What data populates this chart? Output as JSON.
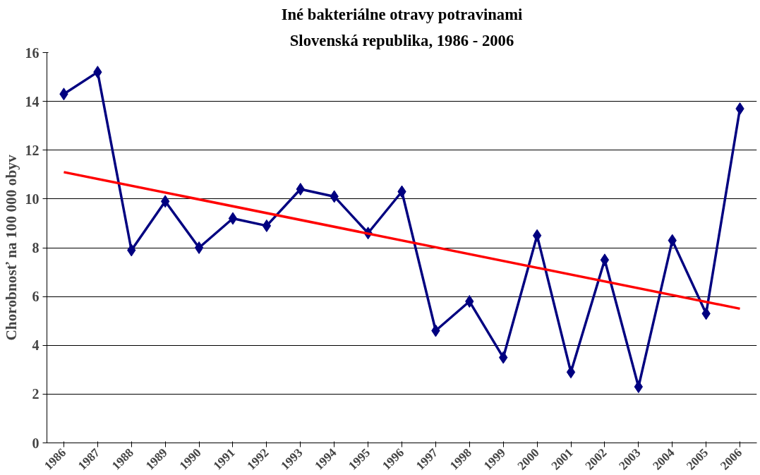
{
  "chart_data": {
    "type": "line",
    "title": "Iné bakteriálne otravy potravinami",
    "subtitle": "Slovenská republika, 1986 - 2006",
    "ylabel": "Chorobnosť na 100 000 obyv",
    "categories": [
      "1986",
      "1987",
      "1988",
      "1989",
      "1990",
      "1991",
      "1992",
      "1993",
      "1994",
      "1995",
      "1996",
      "1997",
      "1998",
      "1999",
      "2000",
      "2001",
      "2002",
      "2003",
      "2004",
      "2005",
      "2006"
    ],
    "series": [
      {
        "color": "#000080",
        "marker": "diamond",
        "values": [
          14.3,
          15.2,
          7.9,
          9.9,
          8.0,
          9.2,
          8.9,
          10.4,
          10.1,
          8.6,
          10.3,
          4.6,
          5.8,
          3.5,
          8.5,
          2.9,
          7.5,
          2.3,
          8.3,
          5.3,
          13.7
        ]
      },
      {
        "type": "line",
        "color": "#ff0000",
        "marker": "none",
        "values": [
          11.1,
          null,
          null,
          null,
          null,
          null,
          null,
          null,
          null,
          null,
          null,
          null,
          null,
          null,
          null,
          null,
          null,
          null,
          null,
          null,
          5.5
        ]
      }
    ],
    "ylim": [
      0,
      16
    ],
    "yticks": [
      0,
      2,
      4,
      6,
      8,
      10,
      12,
      14,
      16
    ],
    "grid": "y"
  }
}
